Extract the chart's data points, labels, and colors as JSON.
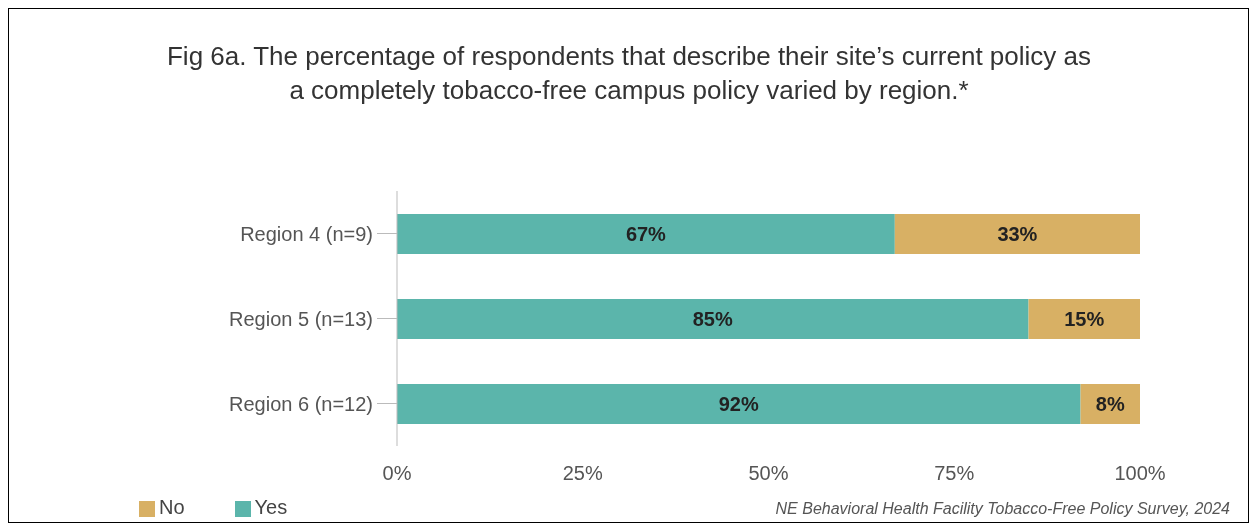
{
  "chart_data": {
    "type": "bar",
    "orientation": "horizontal",
    "stacked": true,
    "title": "Fig 6a. The percentage of respondents that describe their site’s current policy as a completely tobacco-free campus policy varied by region.*",
    "categories": [
      "Region 4 (n=9)",
      "Region 5 (n=13)",
      "Region 6 (n=12)"
    ],
    "series": [
      {
        "name": "Yes",
        "color": "#5bb5ab",
        "values": [
          67,
          85,
          92
        ],
        "value_labels": [
          "67%",
          "85%",
          "92%"
        ]
      },
      {
        "name": "No",
        "color": "#d8b064",
        "values": [
          33,
          15,
          8
        ],
        "value_labels": [
          "33%",
          "15%",
          "8%"
        ]
      }
    ],
    "xlim": [
      0,
      100
    ],
    "xticks": [
      {
        "value": 0,
        "label": "0%"
      },
      {
        "value": 25,
        "label": "25%"
      },
      {
        "value": 50,
        "label": "50%"
      },
      {
        "value": 75,
        "label": "75%"
      },
      {
        "value": 100,
        "label": "100%"
      }
    ],
    "grid": false,
    "legend": "bottom left",
    "annotations": [
      "NE Behavioral Health Facility Tobacco-Free Policy Survey, 2024"
    ]
  }
}
